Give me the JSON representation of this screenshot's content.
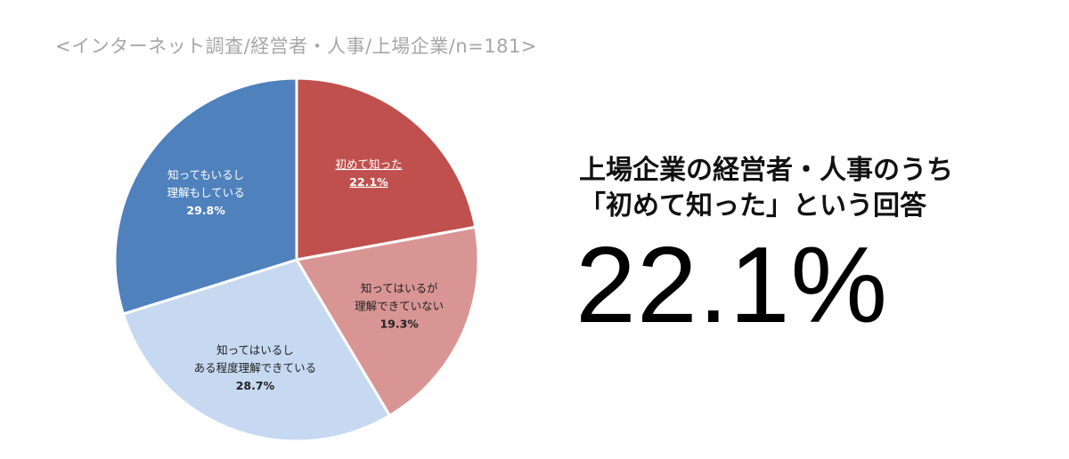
{
  "subtitle": "<インターネット調査/経営者・人事/上場企業/n=181>",
  "headline": {
    "line1": "上場企業の経営者・人事のうち",
    "line2": "「初めて知った」という回答"
  },
  "big_number": "22.1%",
  "chart_data": {
    "type": "pie",
    "title": "",
    "slices": [
      {
        "label_lines": [
          "初めて知った"
        ],
        "value": 22.1,
        "value_label": "22.1%",
        "color": "#c0504d",
        "text_color": "#ffffff",
        "underline": true
      },
      {
        "label_lines": [
          "知ってはいるが",
          "理解できていない"
        ],
        "value": 19.3,
        "value_label": "19.3%",
        "color": "#d99594",
        "text_color": "#222222",
        "underline": false
      },
      {
        "label_lines": [
          "知ってはいるし",
          "ある程度理解できている"
        ],
        "value": 28.7,
        "value_label": "28.7%",
        "color": "#c6d9f1",
        "text_color": "#222222",
        "underline": false
      },
      {
        "label_lines": [
          "知ってもいるし",
          "理解もしている"
        ],
        "value": 29.8,
        "value_label": "29.8%",
        "color": "#4f81bd",
        "text_color": "#ffffff",
        "underline": false
      }
    ],
    "start": "12 o'clock",
    "direction": "clockwise"
  }
}
